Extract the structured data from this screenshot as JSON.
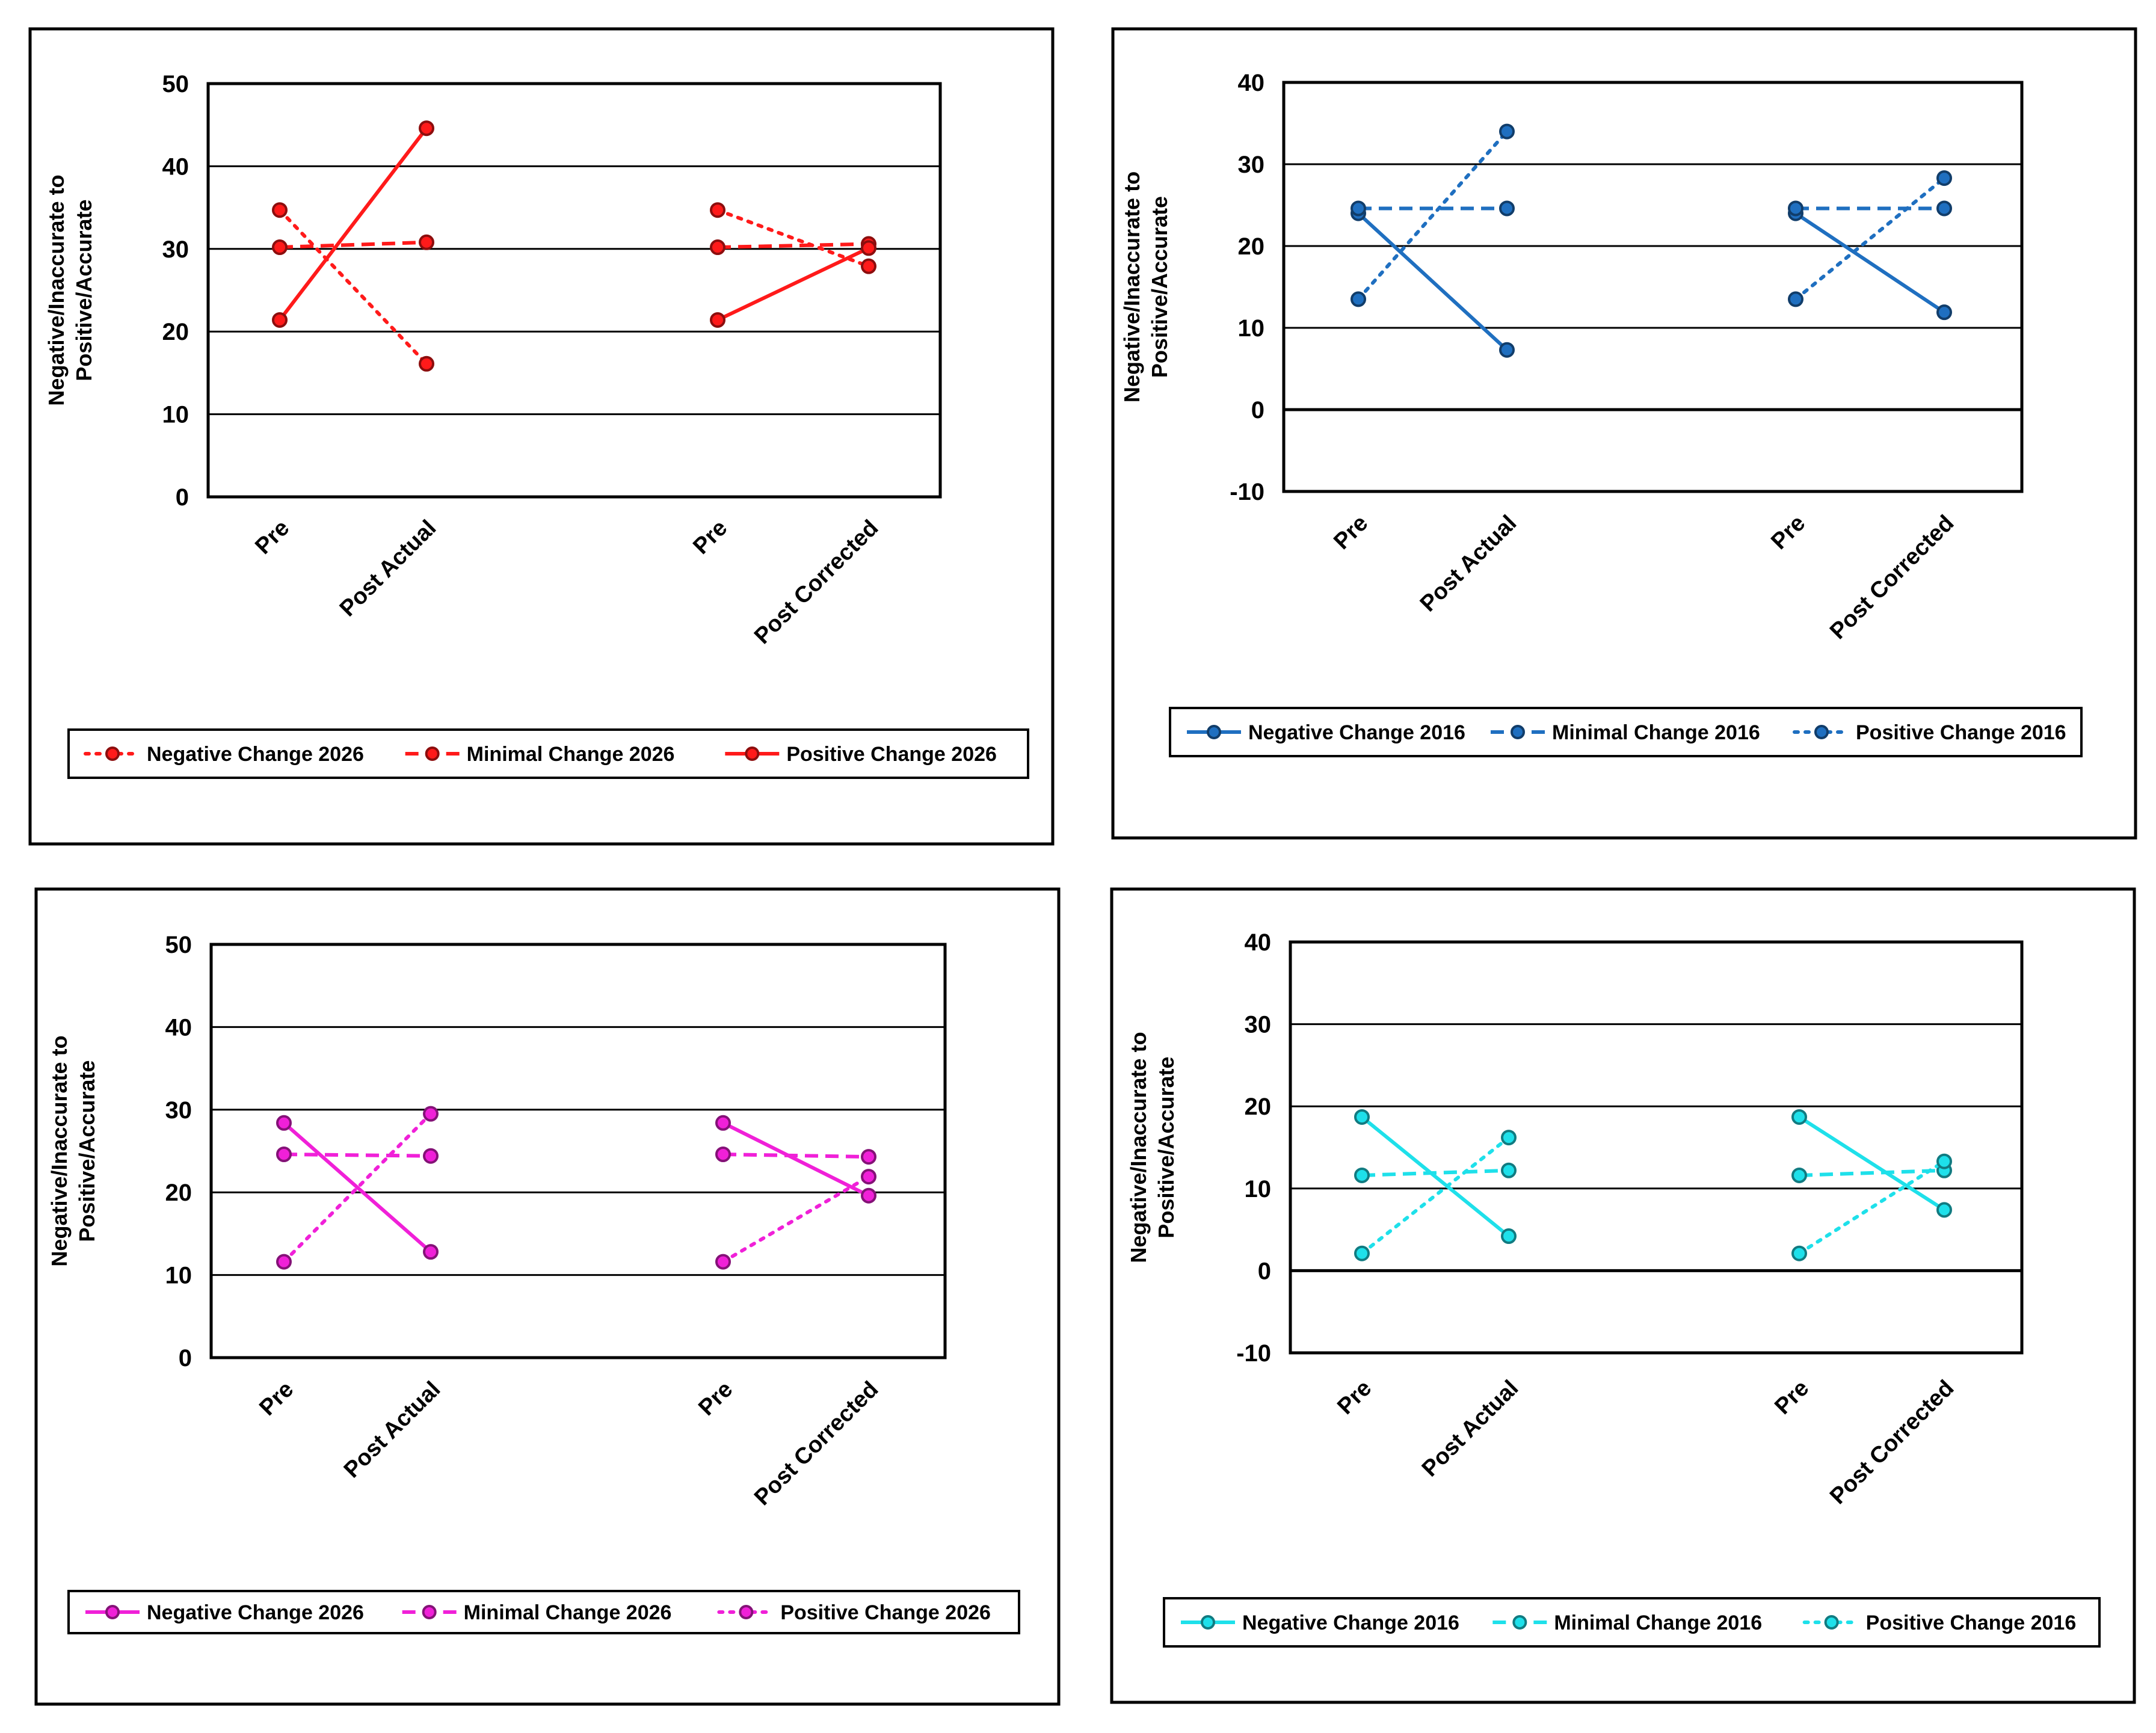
{
  "chart_data": [
    {
      "type": "line",
      "ylabel": [
        "Negative/Inaccurate to",
        "Positive/Accurate"
      ],
      "ylim": [
        0,
        50
      ],
      "yticks": [
        0,
        10,
        20,
        30,
        40,
        50
      ],
      "categories": [
        "Pre",
        "Post Actual",
        "Pre",
        "Post Corrected"
      ],
      "grid": true,
      "legend_position": "bottom",
      "color": "#ff1a1a",
      "series": [
        {
          "name": "Negative Change 2026",
          "dash": "dotted",
          "values": [
            34.7,
            16.1,
            34.7,
            27.9
          ]
        },
        {
          "name": "Minimal Change 2026",
          "dash": "dashed",
          "values": [
            30.2,
            30.8,
            30.2,
            30.6
          ]
        },
        {
          "name": "Positive Change 2026",
          "dash": "solid",
          "values": [
            21.4,
            44.6,
            21.4,
            30.1
          ]
        }
      ]
    },
    {
      "type": "line",
      "ylabel": [
        "Negative/Inaccurate to",
        "Positive/Accurate"
      ],
      "ylim": [
        -10,
        40
      ],
      "yticks": [
        -10,
        0,
        10,
        20,
        30,
        40
      ],
      "categories": [
        "Pre",
        "Post Actual",
        "Pre",
        "Post Corrected"
      ],
      "grid": true,
      "legend_position": "bottom",
      "color": "#1f6fc0",
      "series": [
        {
          "name": "Negative Change 2016",
          "dash": "solid",
          "values": [
            24.0,
            7.3,
            24.0,
            11.9
          ]
        },
        {
          "name": "Minimal Change 2016",
          "dash": "dashed",
          "values": [
            24.6,
            24.6,
            24.6,
            24.6
          ]
        },
        {
          "name": "Positive Change 2016",
          "dash": "dotted",
          "values": [
            13.5,
            34.0,
            13.5,
            28.3
          ]
        }
      ]
    },
    {
      "type": "line",
      "ylabel": [
        "Negative/Inaccurate to",
        "Positive/Accurate"
      ],
      "ylim": [
        0,
        50
      ],
      "yticks": [
        0,
        10,
        20,
        30,
        40,
        50
      ],
      "categories": [
        "Pre",
        "Post Actual",
        "Pre",
        "Post Corrected"
      ],
      "grid": true,
      "legend_position": "bottom",
      "color": "#f020d8",
      "series": [
        {
          "name": "Negative Change 2026",
          "dash": "solid",
          "values": [
            28.4,
            12.8,
            28.4,
            19.6
          ]
        },
        {
          "name": "Minimal Change 2026",
          "dash": "dashed",
          "values": [
            24.6,
            24.4,
            24.6,
            24.3
          ]
        },
        {
          "name": "Positive Change 2026",
          "dash": "dotted",
          "values": [
            11.6,
            29.5,
            11.6,
            21.9
          ]
        }
      ]
    },
    {
      "type": "line",
      "ylabel": [
        "Negative/Inaccurate to",
        "Positive/Accurate"
      ],
      "ylim": [
        -10,
        40
      ],
      "yticks": [
        -10,
        0,
        10,
        20,
        30,
        40
      ],
      "categories": [
        "Pre",
        "Post Actual",
        "Pre",
        "Post Corrected"
      ],
      "grid": true,
      "legend_position": "bottom",
      "color": "#1ee0ea",
      "series": [
        {
          "name": "Negative Change 2016",
          "dash": "solid",
          "values": [
            18.7,
            4.2,
            18.7,
            7.4
          ]
        },
        {
          "name": "Minimal Change 2016",
          "dash": "dashed",
          "values": [
            11.6,
            12.2,
            11.6,
            12.2
          ]
        },
        {
          "name": "Positive Change 2016",
          "dash": "dotted",
          "values": [
            2.1,
            16.2,
            2.1,
            13.3
          ]
        }
      ]
    }
  ]
}
